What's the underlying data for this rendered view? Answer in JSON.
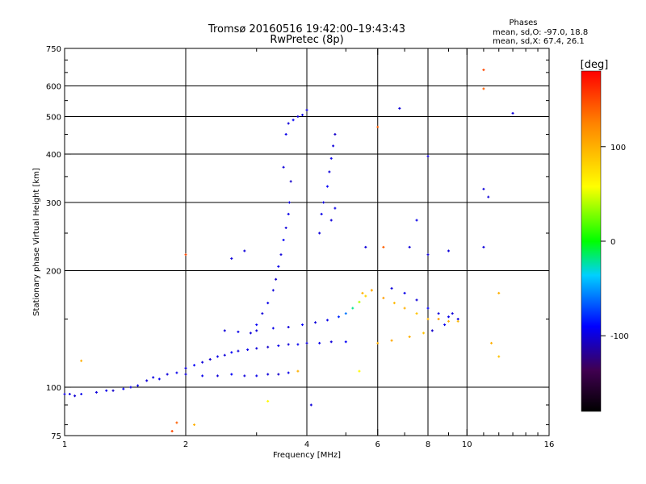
{
  "chart_data": {
    "type": "scatter",
    "title": "Tromsø 20160516 19:42:00–19:43:43",
    "subtitle": "RwPretec (8p)",
    "stats": {
      "heading": "Phases",
      "line_o": "mean, sd,O: -97.0, 18.8",
      "line_x": "mean, sd,X:  67.4, 26.1"
    },
    "xlabel": "Frequency [MHz]",
    "ylabel": "Stationary phase Virtual Height [km]",
    "x_scale": "log",
    "y_scale": "log",
    "xlim": [
      1,
      16
    ],
    "ylim": [
      75,
      750
    ],
    "xticks": [
      1,
      2,
      4,
      6,
      8,
      10,
      16
    ],
    "yticks": [
      75,
      100,
      200,
      300,
      400,
      500,
      600,
      750
    ],
    "xgrid": [
      2,
      4,
      6,
      8,
      10
    ],
    "ygrid": [
      100,
      200,
      300,
      400,
      500,
      600
    ],
    "colorbar": {
      "label": "[deg]",
      "min": -180,
      "max": 180,
      "ticks": [
        100,
        0,
        -100
      ]
    },
    "series": [
      {
        "trace": "low_o",
        "points": [
          [
            1.0,
            96,
            -100
          ],
          [
            1.03,
            96,
            -98
          ],
          [
            1.06,
            95,
            -102
          ],
          [
            1.1,
            96,
            -95
          ],
          [
            1.2,
            97,
            -100
          ],
          [
            1.27,
            98,
            -96
          ],
          [
            1.32,
            98,
            -104
          ],
          [
            1.4,
            99,
            -92
          ],
          [
            1.46,
            100,
            -100
          ],
          [
            1.52,
            101,
            -96
          ],
          [
            1.6,
            104,
            -100
          ],
          [
            1.66,
            106,
            -98
          ],
          [
            1.72,
            105,
            -94
          ],
          [
            1.8,
            108,
            -100
          ],
          [
            1.9,
            109,
            -96
          ],
          [
            2.0,
            112,
            -100
          ],
          [
            2.1,
            114,
            -92
          ],
          [
            2.2,
            116,
            -100
          ],
          [
            2.3,
            118,
            -104
          ],
          [
            2.4,
            120,
            -96
          ],
          [
            2.5,
            121,
            -100
          ],
          [
            2.6,
            123,
            -92
          ],
          [
            2.7,
            124,
            -100
          ],
          [
            2.85,
            125,
            -96
          ],
          [
            3.0,
            126,
            -100
          ],
          [
            3.2,
            127,
            -104
          ],
          [
            3.4,
            128,
            -96
          ],
          [
            3.6,
            129,
            -100
          ],
          [
            3.8,
            129,
            -94
          ],
          [
            4.0,
            130,
            -100
          ],
          [
            4.3,
            130,
            -96
          ],
          [
            4.6,
            131,
            -100
          ],
          [
            5.0,
            131,
            -92
          ]
        ]
      },
      {
        "trace": "lower_o_branch",
        "points": [
          [
            2.0,
            108,
            -100
          ],
          [
            2.2,
            107,
            -96
          ],
          [
            2.4,
            107,
            -100
          ],
          [
            2.6,
            108,
            -92
          ],
          [
            2.8,
            107,
            -100
          ],
          [
            3.0,
            107,
            -96
          ],
          [
            3.2,
            108,
            -100
          ],
          [
            3.4,
            108,
            -104
          ],
          [
            3.6,
            109,
            -96
          ],
          [
            3.8,
            110,
            100
          ]
        ]
      },
      {
        "trace": "steep_rise",
        "points": [
          [
            2.5,
            140,
            -100
          ],
          [
            2.7,
            139,
            -96
          ],
          [
            2.9,
            138,
            -100
          ],
          [
            3.0,
            145,
            -92
          ],
          [
            3.1,
            155,
            -100
          ],
          [
            3.2,
            165,
            -96
          ],
          [
            3.3,
            178,
            -100
          ],
          [
            3.35,
            190,
            -104
          ],
          [
            3.4,
            205,
            -96
          ],
          [
            3.45,
            220,
            -100
          ],
          [
            3.5,
            240,
            -92
          ],
          [
            3.55,
            258,
            -100
          ],
          [
            3.6,
            280,
            -96
          ],
          [
            3.62,
            300,
            -100
          ],
          [
            3.65,
            340,
            -104
          ],
          [
            3.5,
            370,
            -100
          ],
          [
            3.55,
            450,
            -96
          ],
          [
            3.6,
            480,
            -100
          ],
          [
            3.7,
            490,
            -92
          ],
          [
            3.8,
            500,
            -100
          ],
          [
            3.9,
            505,
            -96
          ],
          [
            4.0,
            520,
            -100
          ]
        ]
      },
      {
        "trace": "x_branch",
        "points": [
          [
            3.0,
            140,
            -100
          ],
          [
            3.3,
            142,
            -96
          ],
          [
            3.6,
            143,
            -100
          ],
          [
            3.9,
            145,
            -92
          ],
          [
            4.2,
            147,
            -100
          ],
          [
            4.5,
            149,
            -96
          ],
          [
            4.8,
            152,
            -80
          ],
          [
            5.0,
            155,
            -60
          ],
          [
            5.2,
            160,
            -20
          ],
          [
            5.4,
            166,
            40
          ],
          [
            5.6,
            172,
            80
          ],
          [
            5.8,
            178,
            100
          ]
        ]
      },
      {
        "trace": "upper_cusp",
        "points": [
          [
            4.3,
            250,
            -100
          ],
          [
            4.35,
            280,
            -96
          ],
          [
            4.4,
            300,
            -100
          ],
          [
            4.5,
            330,
            -92
          ],
          [
            4.55,
            360,
            -100
          ],
          [
            4.6,
            390,
            -96
          ],
          [
            4.65,
            420,
            -100
          ],
          [
            4.7,
            450,
            -104
          ],
          [
            4.6,
            270,
            -100
          ],
          [
            4.7,
            290,
            -96
          ]
        ]
      },
      {
        "trace": "x_trace_high_freq",
        "points": [
          [
            5.5,
            175,
            100
          ],
          [
            5.8,
            178,
            105
          ],
          [
            6.2,
            170,
            110
          ],
          [
            6.6,
            165,
            95
          ],
          [
            7.0,
            160,
            100
          ],
          [
            7.5,
            155,
            90
          ],
          [
            8.0,
            150,
            100
          ],
          [
            8.5,
            150,
            110
          ],
          [
            9.0,
            148,
            100
          ],
          [
            9.5,
            148,
            95
          ],
          [
            6.0,
            130,
            100
          ],
          [
            6.5,
            132,
            105
          ],
          [
            7.2,
            135,
            100
          ],
          [
            7.8,
            138,
            90
          ]
        ]
      },
      {
        "trace": "o_trace_high_freq",
        "points": [
          [
            6.5,
            180,
            -100
          ],
          [
            7.0,
            175,
            -96
          ],
          [
            7.5,
            168,
            -100
          ],
          [
            8.0,
            160,
            -92
          ],
          [
            8.5,
            155,
            -100
          ],
          [
            9.0,
            152,
            -96
          ],
          [
            9.5,
            150,
            -100
          ],
          [
            8.2,
            140,
            -104
          ],
          [
            8.8,
            145,
            -96
          ],
          [
            9.2,
            155,
            -100
          ]
        ]
      },
      {
        "trace": "scattered",
        "points": [
          [
            6.0,
            470,
            140
          ],
          [
            6.8,
            525,
            -100
          ],
          [
            8.0,
            395,
            -100
          ],
          [
            11.0,
            660,
            150
          ],
          [
            11.0,
            590,
            140
          ],
          [
            13.0,
            510,
            -100
          ],
          [
            11.0,
            325,
            -100
          ],
          [
            11.3,
            310,
            -100
          ],
          [
            11.0,
            230,
            -100
          ],
          [
            12.0,
            175,
            100
          ],
          [
            11.5,
            130,
            100
          ],
          [
            12.0,
            120,
            90
          ],
          [
            5.6,
            230,
            -100
          ],
          [
            6.2,
            230,
            140
          ],
          [
            7.2,
            230,
            -100
          ],
          [
            8.0,
            220,
            -100
          ],
          [
            9.0,
            225,
            -100
          ],
          [
            7.5,
            270,
            -96
          ],
          [
            1.1,
            117,
            100
          ],
          [
            1.9,
            81,
            140
          ],
          [
            2.1,
            80,
            100
          ],
          [
            1.85,
            77,
            150
          ],
          [
            2.0,
            220,
            150
          ],
          [
            2.6,
            215,
            -100
          ],
          [
            2.8,
            225,
            -100
          ],
          [
            4.1,
            90,
            -100
          ],
          [
            3.2,
            92,
            60
          ],
          [
            5.4,
            110,
            60
          ]
        ]
      }
    ]
  }
}
